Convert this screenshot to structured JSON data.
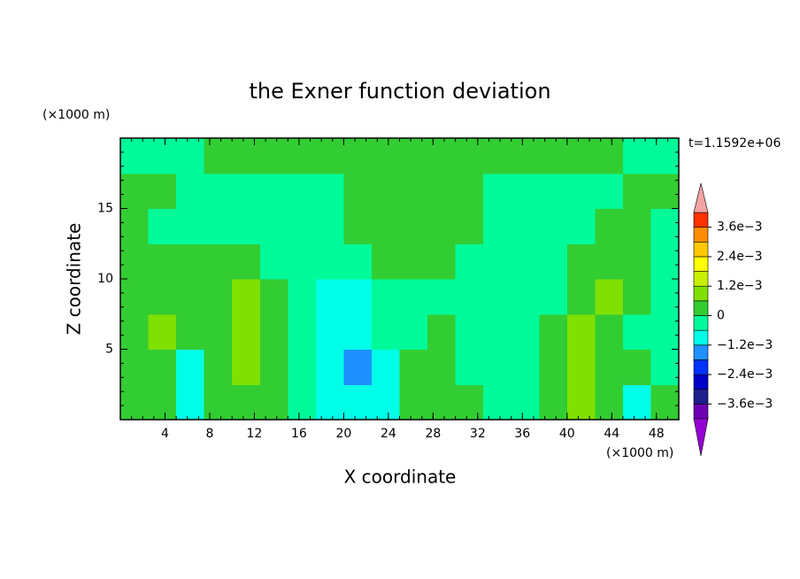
{
  "chart_data": {
    "type": "contour",
    "title": "the Exner function deviation",
    "annotation": "t=1.1592e+06",
    "x_label": "X coordinate",
    "y_label": "Z coordinate",
    "x_unit": "(×1000 m)",
    "y_unit": "(×1000 m)",
    "xlim": [
      0,
      50
    ],
    "ylim": [
      0,
      20
    ],
    "xticks": [
      4,
      8,
      12,
      16,
      20,
      24,
      28,
      32,
      36,
      40,
      44,
      48
    ],
    "yticks": [
      5,
      10,
      15
    ],
    "x": [
      1.25,
      3.75,
      6.25,
      8.75,
      11.25,
      13.75,
      16.25,
      18.75,
      21.25,
      23.75,
      26.25,
      28.75,
      31.25,
      33.75,
      36.25,
      38.75,
      41.25,
      43.75,
      46.25,
      48.75
    ],
    "y": [
      1.25,
      3.75,
      6.25,
      8.75,
      11.25,
      13.75,
      16.25,
      18.75
    ],
    "z": [
      [
        0.0003,
        0.0003,
        -0.0008,
        0.0003,
        0.0003,
        0.0003,
        -0.0003,
        -0.0008,
        -0.0008,
        -0.0008,
        0.0003,
        0.0003,
        0.0003,
        -0.0003,
        -0.0003,
        0.0003,
        0.0008,
        0.0003,
        -0.0008,
        0.0003
      ],
      [
        0.0003,
        0.0003,
        -0.0008,
        0.0003,
        0.0008,
        0.0003,
        -0.0003,
        -0.0008,
        -0.0015,
        -0.0008,
        0.0003,
        0.0003,
        -0.0003,
        -0.0003,
        -0.0003,
        0.0003,
        0.0008,
        0.0003,
        0.0003,
        -0.0003
      ],
      [
        0.0003,
        0.0008,
        0.0003,
        0.0003,
        0.0008,
        0.0003,
        -0.0003,
        -0.0008,
        -0.0008,
        -0.0003,
        -0.0003,
        0.0003,
        -0.0003,
        -0.0003,
        -0.0003,
        0.0003,
        0.0008,
        0.0003,
        -0.0003,
        -0.0003
      ],
      [
        0.0003,
        0.0003,
        0.0003,
        0.0003,
        0.0008,
        0.0003,
        -0.0003,
        -0.0008,
        -0.0008,
        -0.0003,
        -0.0003,
        -0.0003,
        -0.0003,
        -0.0003,
        -0.0003,
        -0.0003,
        0.0003,
        0.0008,
        0.0003,
        -0.0003
      ],
      [
        0.0003,
        0.0003,
        0.0003,
        0.0003,
        0.0003,
        -0.0003,
        -0.0003,
        -0.0003,
        -0.0003,
        0.0003,
        0.0003,
        0.0003,
        -0.0003,
        -0.0003,
        -0.0003,
        -0.0003,
        0.0003,
        0.0003,
        0.0003,
        -0.0003
      ],
      [
        0.0003,
        -0.0003,
        -0.0003,
        -0.0003,
        -0.0003,
        -0.0003,
        -0.0003,
        -0.0003,
        0.0003,
        0.0003,
        0.0003,
        0.0003,
        0.0003,
        -0.0003,
        -0.0003,
        -0.0003,
        -0.0003,
        0.0003,
        0.0003,
        -0.0003
      ],
      [
        0.0003,
        0.0003,
        -0.0003,
        -0.0003,
        -0.0003,
        -0.0003,
        -0.0003,
        -0.0003,
        0.0003,
        0.0003,
        0.0003,
        0.0003,
        0.0003,
        -0.0003,
        -0.0003,
        -0.0003,
        -0.0003,
        -0.0003,
        0.0003,
        0.0003
      ],
      [
        -0.0003,
        -0.0003,
        -0.0003,
        0.0003,
        0.0003,
        0.0003,
        0.0003,
        0.0003,
        0.0003,
        0.0003,
        0.0003,
        0.0003,
        0.0003,
        0.0003,
        0.0003,
        0.0003,
        0.0003,
        0.0003,
        -0.0003,
        -0.0003
      ]
    ],
    "levels": [
      -0.0042,
      -0.0036,
      -0.003,
      -0.0024,
      -0.0018,
      -0.0012,
      -0.0006,
      0,
      0.0006,
      0.0012,
      0.0018,
      0.0024,
      0.003,
      0.0036,
      0.0042
    ],
    "colors": [
      "#6e00b4",
      "#1e1e8c",
      "#0000c8",
      "#0032ff",
      "#1e90ff",
      "#00ffe6",
      "#00fa9a",
      "#32cd32",
      "#80e000",
      "#c8f000",
      "#ffff00",
      "#ffc800",
      "#ff8c00",
      "#ff3200"
    ],
    "under_color": "#9400d3",
    "over_color": "#f4a4a4",
    "colorbar_ticks": [
      {
        "value": -0.0036,
        "label": "−3.6e−3"
      },
      {
        "value": -0.0024,
        "label": "−2.4e−3"
      },
      {
        "value": -0.0012,
        "label": "−1.2e−3"
      },
      0,
      {
        "value": 0.0012,
        "label": "1.2e−3"
      },
      {
        "value": 0.0024,
        "label": "2.4e−3"
      },
      {
        "value": 0.0036,
        "label": "3.6e−3"
      }
    ]
  }
}
